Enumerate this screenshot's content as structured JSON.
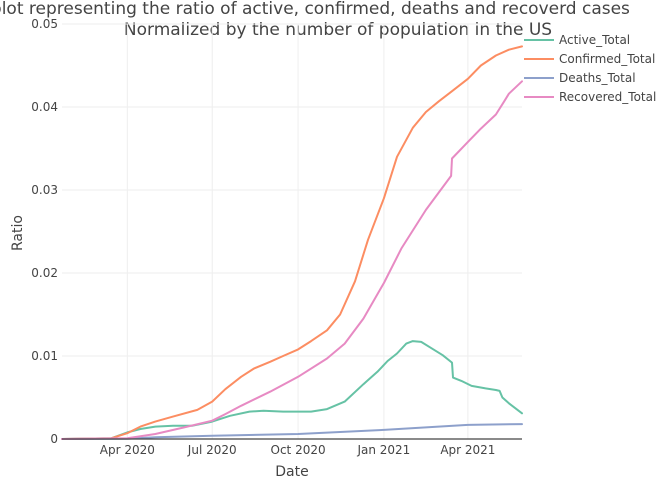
{
  "chart_data": {
    "type": "line",
    "title_lines": [
      "Line plot representing the ratio of active, confirmed, deaths and recoverd cases",
      "Normalized by the number of population in the US"
    ],
    "xlabel": "Date",
    "ylabel": "Ratio",
    "x_start": "2020-01-22",
    "x_end": "2021-05-29",
    "x_tick_labels": [
      "Apr 2020",
      "Jul 2020",
      "Oct 2020",
      "Jan 2021",
      "Apr 2021"
    ],
    "x_tick_dates": [
      "2020-04-01",
      "2020-07-01",
      "2020-10-01",
      "2021-01-01",
      "2021-04-01"
    ],
    "ylim": [
      0,
      0.05
    ],
    "y_ticks": [
      0,
      0.01,
      0.02,
      0.03,
      0.04,
      0.05
    ],
    "y_tick_labels": [
      "0",
      "0.01",
      "0.02",
      "0.03",
      "0.04",
      "0.05"
    ],
    "grid": true,
    "legend_position": "top-right",
    "series": [
      {
        "name": "Active_Total",
        "color": "#66c2a5",
        "points": [
          [
            "2020-01-22",
            0
          ],
          [
            "2020-03-15",
            0.0001
          ],
          [
            "2020-04-01",
            0.0008
          ],
          [
            "2020-04-15",
            0.0012
          ],
          [
            "2020-05-01",
            0.0015
          ],
          [
            "2020-05-20",
            0.0016
          ],
          [
            "2020-06-10",
            0.0016
          ],
          [
            "2020-07-01",
            0.0021
          ],
          [
            "2020-07-20",
            0.0028
          ],
          [
            "2020-08-10",
            0.0033
          ],
          [
            "2020-08-25",
            0.0034
          ],
          [
            "2020-09-15",
            0.0033
          ],
          [
            "2020-10-15",
            0.0033
          ],
          [
            "2020-11-01",
            0.0036
          ],
          [
            "2020-11-20",
            0.0045
          ],
          [
            "2020-12-10",
            0.0066
          ],
          [
            "2020-12-25",
            0.0081
          ],
          [
            "2021-01-05",
            0.0094
          ],
          [
            "2021-01-15",
            0.0103
          ],
          [
            "2021-01-25",
            0.0115
          ],
          [
            "2021-02-01",
            0.0118
          ],
          [
            "2021-02-10",
            0.0117
          ],
          [
            "2021-02-20",
            0.011
          ],
          [
            "2021-03-05",
            0.0101
          ],
          [
            "2021-03-15",
            0.0092
          ],
          [
            "2021-03-16",
            0.0074
          ],
          [
            "2021-03-25",
            0.007
          ],
          [
            "2021-04-05",
            0.0064
          ],
          [
            "2021-04-20",
            0.0061
          ],
          [
            "2021-05-01",
            0.0059
          ],
          [
            "2021-05-05",
            0.0058
          ],
          [
            "2021-05-08",
            0.005
          ],
          [
            "2021-05-15",
            0.0043
          ],
          [
            "2021-05-29",
            0.0031
          ]
        ]
      },
      {
        "name": "Confirmed_Total",
        "color": "#fc8d62",
        "points": [
          [
            "2020-01-22",
            0
          ],
          [
            "2020-03-15",
            0.0001
          ],
          [
            "2020-04-01",
            0.0007
          ],
          [
            "2020-04-15",
            0.0015
          ],
          [
            "2020-05-01",
            0.0021
          ],
          [
            "2020-05-20",
            0.0027
          ],
          [
            "2020-06-15",
            0.0035
          ],
          [
            "2020-07-01",
            0.0045
          ],
          [
            "2020-07-15",
            0.006
          ],
          [
            "2020-08-01",
            0.0075
          ],
          [
            "2020-08-15",
            0.0085
          ],
          [
            "2020-09-01",
            0.0093
          ],
          [
            "2020-09-15",
            0.01
          ],
          [
            "2020-10-01",
            0.0108
          ],
          [
            "2020-10-15",
            0.0118
          ],
          [
            "2020-11-01",
            0.0131
          ],
          [
            "2020-11-15",
            0.015
          ],
          [
            "2020-12-01",
            0.019
          ],
          [
            "2020-12-15",
            0.024
          ],
          [
            "2021-01-01",
            0.029
          ],
          [
            "2021-01-15",
            0.034
          ],
          [
            "2021-02-01",
            0.0375
          ],
          [
            "2021-02-15",
            0.0394
          ],
          [
            "2021-03-01",
            0.0407
          ],
          [
            "2021-03-15",
            0.0419
          ],
          [
            "2021-04-01",
            0.0434
          ],
          [
            "2021-04-15",
            0.045
          ],
          [
            "2021-05-01",
            0.0462
          ],
          [
            "2021-05-15",
            0.0469
          ],
          [
            "2021-05-29",
            0.0473
          ]
        ]
      },
      {
        "name": "Deaths_Total",
        "color": "#8da0cb",
        "points": [
          [
            "2020-01-22",
            0
          ],
          [
            "2020-04-01",
            2e-05
          ],
          [
            "2020-05-01",
            0.0002
          ],
          [
            "2020-07-01",
            0.0004
          ],
          [
            "2020-10-01",
            0.0006
          ],
          [
            "2021-01-01",
            0.0011
          ],
          [
            "2021-04-01",
            0.0017
          ],
          [
            "2021-05-29",
            0.0018
          ]
        ]
      },
      {
        "name": "Recovered_Total",
        "color": "#e78ac3",
        "points": [
          [
            "2020-01-22",
            0
          ],
          [
            "2020-04-01",
            0.0001
          ],
          [
            "2020-05-01",
            0.0006
          ],
          [
            "2020-06-01",
            0.0014
          ],
          [
            "2020-07-01",
            0.0022
          ],
          [
            "2020-07-15",
            0.003
          ],
          [
            "2020-08-01",
            0.004
          ],
          [
            "2020-09-01",
            0.0057
          ],
          [
            "2020-10-01",
            0.0075
          ],
          [
            "2020-11-01",
            0.0097
          ],
          [
            "2020-11-20",
            0.0115
          ],
          [
            "2020-12-10",
            0.0145
          ],
          [
            "2021-01-01",
            0.0188
          ],
          [
            "2021-01-20",
            0.023
          ],
          [
            "2021-02-15",
            0.0276
          ],
          [
            "2021-03-14",
            0.0317
          ],
          [
            "2021-03-15",
            0.0338
          ],
          [
            "2021-04-01",
            0.0358
          ],
          [
            "2021-04-15",
            0.0374
          ],
          [
            "2021-05-01",
            0.0391
          ],
          [
            "2021-05-10",
            0.0407
          ],
          [
            "2021-05-15",
            0.0416
          ],
          [
            "2021-05-29",
            0.0431
          ]
        ]
      }
    ]
  }
}
